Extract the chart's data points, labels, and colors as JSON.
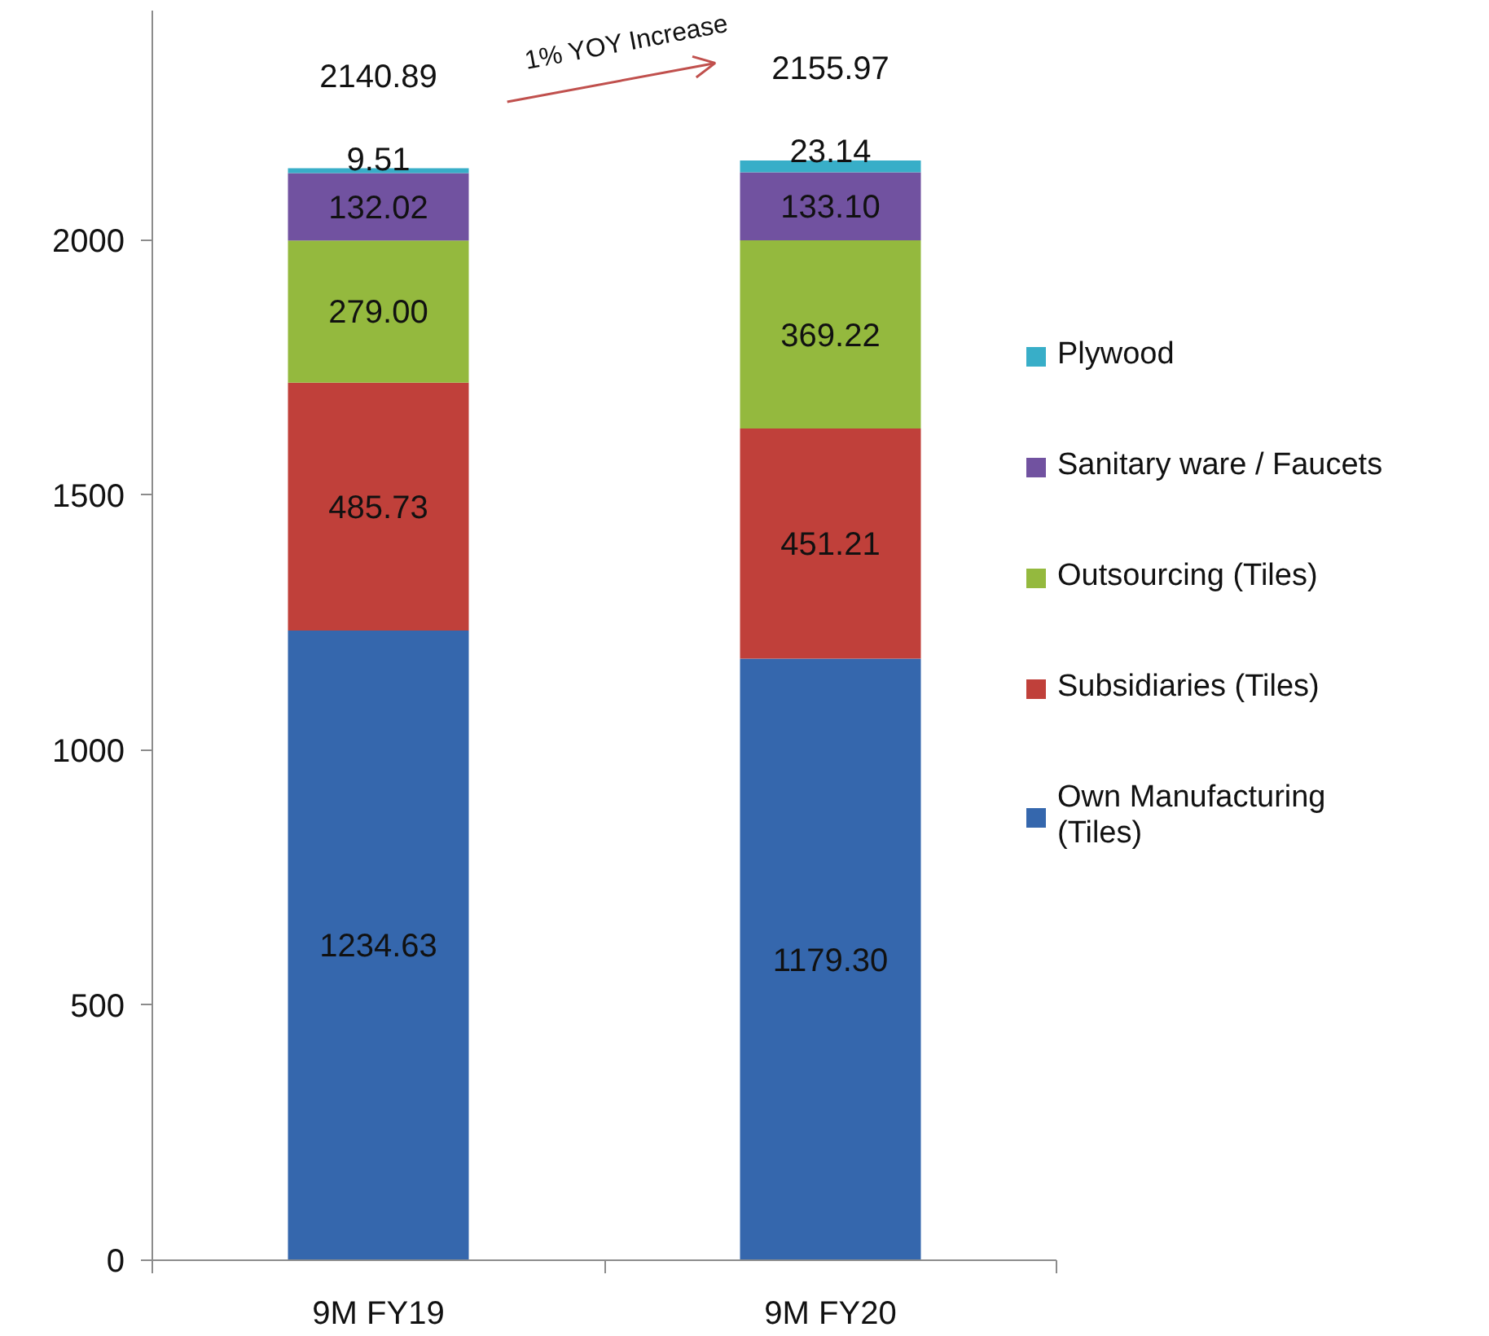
{
  "chart_data": {
    "type": "bar",
    "stacked": true,
    "categories": [
      "9M FY19",
      "9M FY20"
    ],
    "series": [
      {
        "name": "Own Manufacturing (Tiles)",
        "color": "#3567ad",
        "values": [
          1234.63,
          1179.3
        ],
        "value_labels": [
          "1234.63",
          "1179.30"
        ]
      },
      {
        "name": "Subsidiaries (Tiles)",
        "color": "#c0403a",
        "values": [
          485.73,
          451.21
        ],
        "value_labels": [
          "485.73",
          "451.21"
        ]
      },
      {
        "name": "Outsourcing (Tiles)",
        "color": "#94b93e",
        "values": [
          279.0,
          369.22
        ],
        "value_labels": [
          "279.00",
          "369.22"
        ]
      },
      {
        "name": "Sanitary ware / Faucets",
        "color": "#7152a0",
        "values": [
          132.02,
          133.1
        ],
        "value_labels": [
          "132.02",
          "133.10"
        ]
      },
      {
        "name": "Plywood",
        "color": "#38aec8",
        "values": [
          9.51,
          23.14
        ],
        "value_labels": [
          "9.51",
          "23.14"
        ]
      }
    ],
    "totals": [
      "2140.89",
      "2155.97"
    ],
    "ylim": [
      0,
      2450
    ],
    "yticks": [
      0,
      500,
      1000,
      1500,
      2000
    ],
    "legend": "right",
    "annotations": [
      "1% YOY Increase"
    ]
  }
}
